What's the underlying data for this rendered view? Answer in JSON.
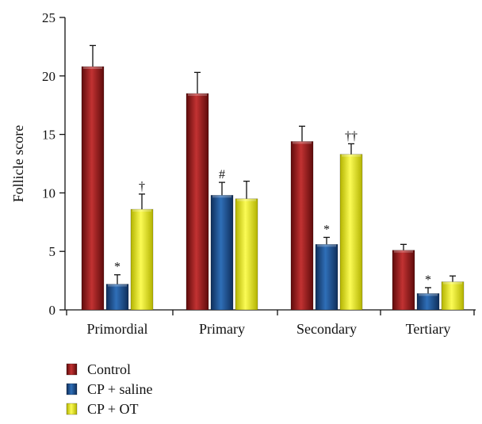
{
  "chart_data": {
    "type": "bar",
    "ylabel": "Follicle score",
    "xlabel": "",
    "ylim": [
      0,
      25
    ],
    "yticks": [
      0,
      5,
      10,
      15,
      20,
      25
    ],
    "grid": false,
    "legend_placement": "bottom-left",
    "categories": [
      "Primordial",
      "Primary",
      "Secondary",
      "Tertiary"
    ],
    "series": [
      {
        "name": "Control",
        "color": "#9b1b1b",
        "values": [
          20.8,
          18.5,
          14.4,
          5.1
        ],
        "errors": [
          1.8,
          1.8,
          1.3,
          0.5
        ],
        "annotations": [
          "",
          "",
          "",
          ""
        ]
      },
      {
        "name": "CP + saline",
        "color": "#1e4f8c",
        "values": [
          2.2,
          9.8,
          5.6,
          1.4
        ],
        "errors": [
          0.8,
          1.1,
          0.6,
          0.5
        ],
        "annotations": [
          "*",
          "#",
          "*",
          "*"
        ]
      },
      {
        "name": "CP + OT",
        "color": "#e6e61e",
        "values": [
          8.6,
          9.5,
          13.3,
          2.4
        ],
        "errors": [
          1.3,
          1.5,
          0.9,
          0.5
        ],
        "annotations": [
          "†",
          "",
          "††",
          ""
        ]
      }
    ]
  }
}
